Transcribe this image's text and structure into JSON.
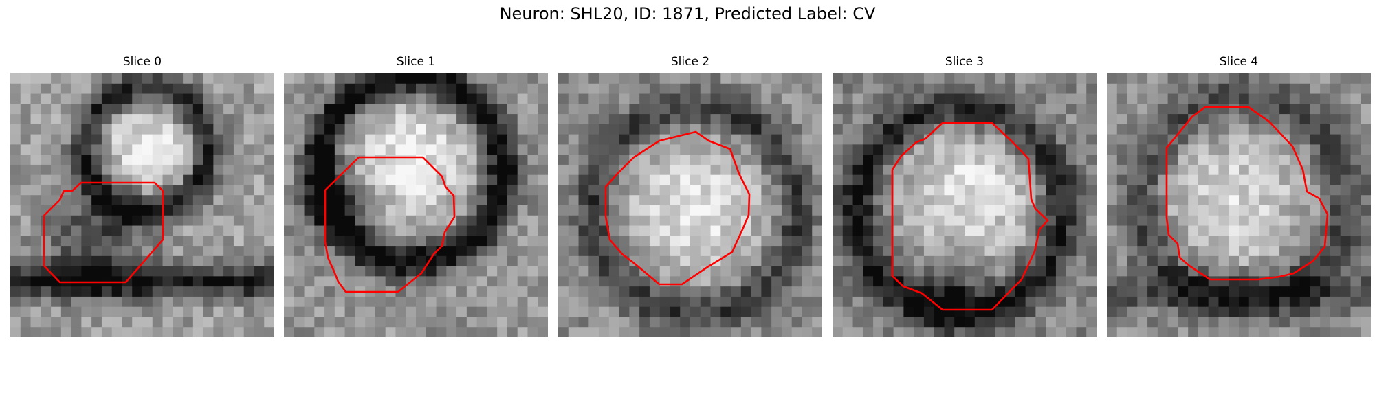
{
  "figure": {
    "title": "Neuron: SHL20, ID: 1871, Predicted Label: CV"
  },
  "panels": [
    {
      "title": "Slice 0"
    },
    {
      "title": "Slice 1"
    },
    {
      "title": "Slice 2"
    },
    {
      "title": "Slice 3"
    },
    {
      "title": "Slice 4"
    }
  ],
  "colors": {
    "contour": "#ff0000"
  }
}
